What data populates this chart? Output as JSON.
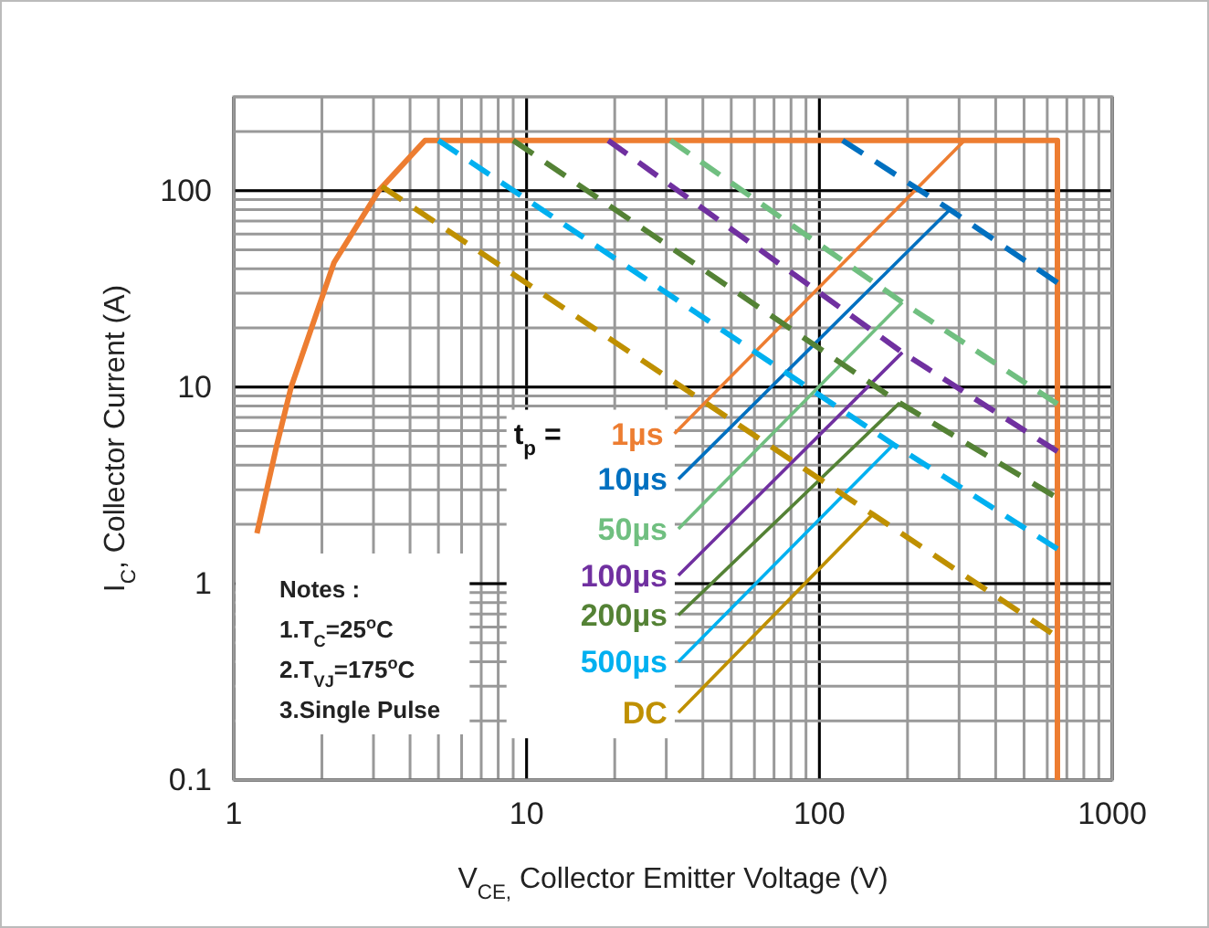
{
  "chart_data": {
    "type": "line",
    "xlabel": "V$_{CE,}$ Collector Emitter Voltage (V)",
    "ylabel": "I$_{C}$, Collector Current (A)",
    "legend_title": "t$_{p}$ =",
    "log": "xy",
    "grid": true,
    "legend": "bottom",
    "xlim": [
      1,
      1000
    ],
    "ylim": [
      0.1,
      300
    ],
    "xticks": [
      1,
      10,
      100,
      1000
    ],
    "yticks": [
      0.1,
      1,
      10,
      100
    ],
    "series": [
      {
        "color": "#ed7d31",
        "line_style": "solid",
        "x": [
          1.2,
          1.4,
          1.57,
          2.2,
          3.13,
          4.5,
          650,
          650
        ],
        "values": [
          1.8,
          5,
          10,
          43,
          100,
          180,
          180,
          0.1
        ]
      },
      {
        "name": "1µs",
        "color": "#ed7d31",
        "line_style": "solid",
        "x": [
          32,
          313
        ],
        "values": [
          5.8,
          180
        ]
      },
      {
        "name": "10µs",
        "color": "#0070c0",
        "line_style": "solid",
        "x": [
          33,
          279
        ],
        "values": [
          3.4,
          80
        ]
      },
      {
        "color": "#0070c0",
        "line_style": "dashed",
        "x": [
          120,
          279,
          650
        ],
        "values": [
          180,
          80,
          34
        ]
      },
      {
        "name": "50µs",
        "color": "#70bf80",
        "line_style": "solid",
        "x": [
          33,
          192
        ],
        "values": [
          1.9,
          27
        ]
      },
      {
        "color": "#70bf80",
        "line_style": "dashed",
        "x": [
          31,
          192,
          650
        ],
        "values": [
          180,
          27,
          8.2
        ]
      },
      {
        "name": "100µs",
        "color": "#7030a0",
        "line_style": "solid",
        "x": [
          33,
          192
        ],
        "values": [
          1.1,
          15
        ]
      },
      {
        "color": "#7030a0",
        "line_style": "dashed",
        "x": [
          19,
          192,
          650
        ],
        "values": [
          180,
          15,
          4.7
        ]
      },
      {
        "name": "200µs",
        "color": "#548235",
        "line_style": "solid",
        "x": [
          33,
          188
        ],
        "values": [
          0.69,
          8.3
        ]
      },
      {
        "color": "#548235",
        "line_style": "dashed",
        "x": [
          9,
          188,
          630
        ],
        "values": [
          180,
          8.3,
          2.8
        ]
      },
      {
        "name": "500µs",
        "color": "#00b0f0",
        "line_style": "solid",
        "x": [
          33,
          179
        ],
        "values": [
          0.4,
          5.1
        ]
      },
      {
        "color": "#00b0f0",
        "line_style": "dashed",
        "x": [
          5,
          179,
          650
        ],
        "values": [
          180,
          5.1,
          1.5
        ]
      },
      {
        "name": "DC",
        "color": "#bf9000",
        "line_style": "solid",
        "x": [
          33,
          152
        ],
        "values": [
          0.22,
          2.25
        ]
      },
      {
        "color": "#bf9000",
        "line_style": "dashed",
        "x": [
          3.2,
          152,
          620
        ],
        "values": [
          105,
          2.25,
          0.56
        ]
      }
    ],
    "annotations": [
      "Notes :",
      "1.T$_{C}$=25$^{o}$C",
      "2.T$_{VJ}$=175$^{o}$C",
      "3.Single Pulse"
    ]
  }
}
